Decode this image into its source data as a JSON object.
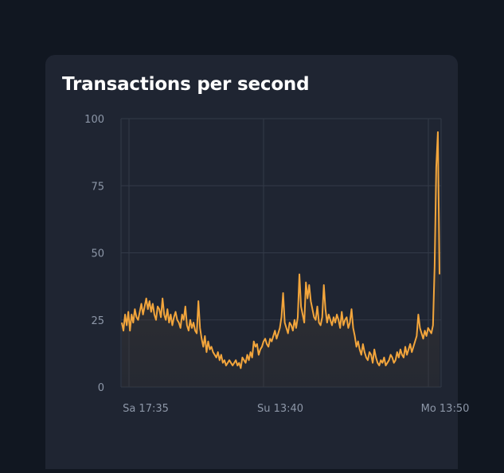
{
  "card": {
    "title": "Transactions per second"
  },
  "colors": {
    "page_bg": "#111721",
    "card_bg": "#1f2532",
    "line": "#f2a53c",
    "grid": "#333a48",
    "tick_text": "#8d97a8"
  },
  "chart_data": {
    "type": "area",
    "title": "Transactions per second",
    "xlabel": "",
    "ylabel": "",
    "ylim": [
      0,
      100
    ],
    "yticks": [
      0,
      25,
      50,
      75,
      100
    ],
    "xticks": [
      "Sa 17:35",
      "Su 13:40",
      "Mo 13:50"
    ],
    "grid": true,
    "legend": "none",
    "series": [
      {
        "values": [
          24,
          21,
          27,
          23,
          28,
          21,
          27,
          24,
          29,
          26,
          25,
          28,
          31,
          27,
          30,
          33,
          29,
          32,
          28,
          31,
          27,
          25,
          30,
          29,
          26,
          33,
          27,
          25,
          29,
          24,
          27,
          23,
          26,
          28,
          25,
          24,
          22,
          27,
          25,
          30,
          23,
          21,
          25,
          22,
          24,
          21,
          20,
          32,
          22,
          18,
          15,
          19,
          13,
          17,
          14,
          15,
          13,
          12,
          11,
          13,
          10,
          12,
          9,
          10,
          8,
          9,
          10,
          9,
          8,
          9,
          10,
          8,
          9,
          7,
          11,
          10,
          9,
          12,
          10,
          13,
          11,
          17,
          15,
          16,
          12,
          14,
          15,
          17,
          18,
          16,
          15,
          18,
          17,
          19,
          21,
          18,
          20,
          22,
          26,
          35,
          24,
          22,
          20,
          24,
          23,
          21,
          25,
          22,
          26,
          42,
          30,
          27,
          24,
          39,
          33,
          38,
          32,
          29,
          26,
          25,
          30,
          24,
          23,
          26,
          38,
          29,
          24,
          27,
          25,
          23,
          26,
          24,
          27,
          25,
          22,
          28,
          23,
          25,
          26,
          22,
          24,
          29,
          22,
          19,
          15,
          17,
          14,
          12,
          16,
          13,
          11,
          10,
          13,
          12,
          9,
          14,
          11,
          9,
          8,
          10,
          9,
          11,
          8,
          9,
          10,
          12,
          11,
          9,
          10,
          13,
          11,
          14,
          12,
          11,
          15,
          12,
          14,
          16,
          13,
          15,
          17,
          19,
          27,
          22,
          20,
          18,
          21,
          19,
          22,
          21,
          20,
          23,
          45,
          82,
          95,
          42
        ]
      }
    ]
  }
}
